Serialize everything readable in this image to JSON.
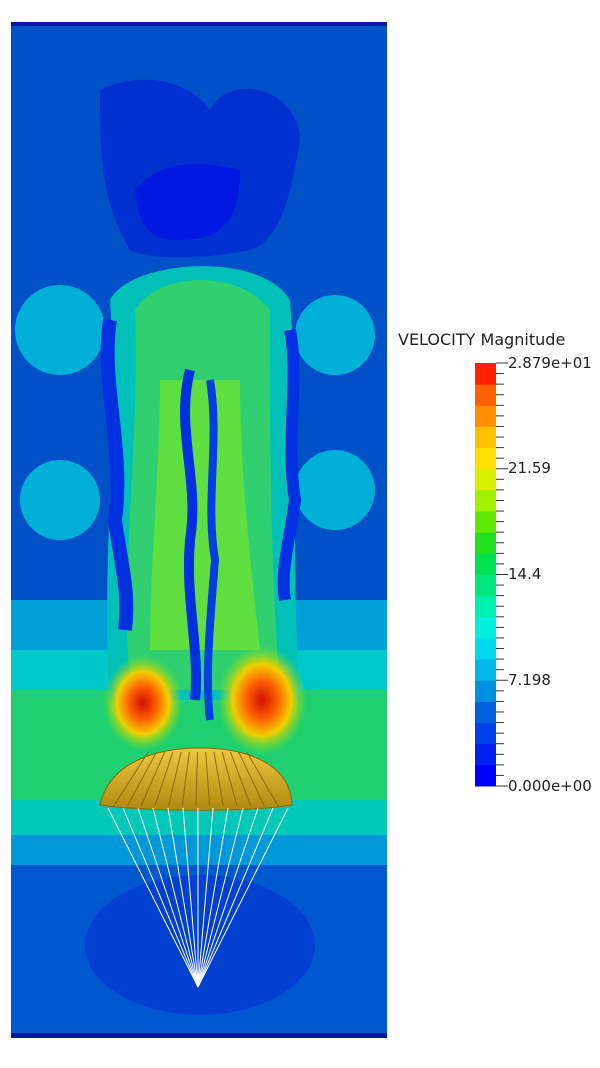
{
  "legend": {
    "title": "VELOCITY Magnitude",
    "ticks": [
      {
        "label": "2.879e+01",
        "value": 28.79
      },
      {
        "label": "21.59",
        "value": 21.59
      },
      {
        "label": "14.4",
        "value": 14.4
      },
      {
        "label": "7.198",
        "value": 7.198
      },
      {
        "label": "0.000e+00",
        "value": 0.0
      }
    ],
    "range": [
      0.0,
      28.79
    ],
    "bands": 20,
    "colors": [
      "#0000ff",
      "#0020f0",
      "#0040e8",
      "#0060e0",
      "#0090e0",
      "#00b8e8",
      "#00d8f0",
      "#00f0e0",
      "#00f0b0",
      "#00e880",
      "#00e050",
      "#20e020",
      "#60e800",
      "#a0f000",
      "#d8f000",
      "#ffe000",
      "#ffc000",
      "#ff9000",
      "#ff6000",
      "#ff2000"
    ]
  },
  "scene": {
    "background_color": "#0050c8",
    "canopy_color": "#d8b020",
    "lines_color": "#ffffff"
  }
}
